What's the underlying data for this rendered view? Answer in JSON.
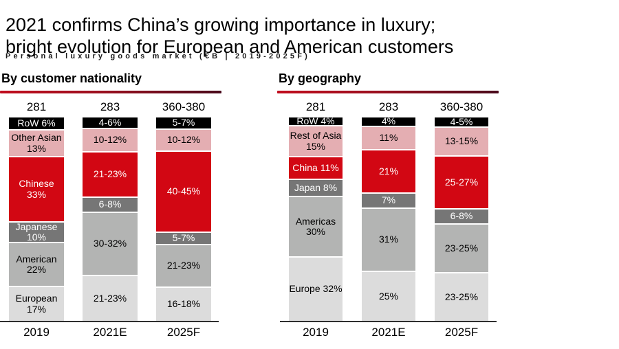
{
  "page": {
    "title_line1": "2021 confirms China’s growing importance in luxury;",
    "title_line2": "bright evolution for European and American customers",
    "subtitle": "Personal luxury goods market (€B | 2019-2025F)"
  },
  "palette": {
    "black": "#000000",
    "pink": "#e4aeb2",
    "red": "#d20713",
    "darkgray": "#767676",
    "midgray": "#b3b4b3",
    "lightgray": "#dcdcdc",
    "accent_rule_left": "#c10d1e",
    "accent_rule_right": "#4a0a1c",
    "axis": "#2e2e2e"
  },
  "chart_data": [
    {
      "type": "bar",
      "variant": "stacked-100-percent",
      "title": "By customer nationality",
      "categories": [
        "2019",
        "2021E",
        "2025F"
      ],
      "totals": [
        "281",
        "283",
        "360-380"
      ],
      "legend": "none (labels inline in segments)",
      "series_top_to_bottom": [
        "RoW",
        "Other Asian",
        "Chinese",
        "Japanese",
        "American",
        "European"
      ],
      "bars": [
        {
          "category": "2019",
          "total": "281",
          "segments": [
            {
              "name": "RoW",
              "label": "RoW 6%",
              "value": 6,
              "color": "black"
            },
            {
              "name": "Other Asian",
              "label": "Other Asian\n13%",
              "value": 13,
              "color": "pink"
            },
            {
              "name": "Chinese",
              "label": "Chinese\n33%",
              "value": 33,
              "color": "red"
            },
            {
              "name": "Japanese",
              "label": "Japanese\n10%",
              "value": 10,
              "color": "darkgray"
            },
            {
              "name": "American",
              "label": "American\n22%",
              "value": 22,
              "color": "midgray"
            },
            {
              "name": "European",
              "label": "European\n17%",
              "value": 17,
              "color": "lightgray"
            }
          ]
        },
        {
          "category": "2021E",
          "total": "283",
          "segments": [
            {
              "name": "RoW",
              "label": "4-6%",
              "value": 5,
              "color": "black"
            },
            {
              "name": "Other Asian",
              "label": "10-12%",
              "value": 11,
              "color": "pink"
            },
            {
              "name": "Chinese",
              "label": "21-23%",
              "value": 22,
              "color": "red"
            },
            {
              "name": "Japanese",
              "label": "6-8%",
              "value": 7,
              "color": "darkgray"
            },
            {
              "name": "American",
              "label": "30-32%",
              "value": 31,
              "color": "midgray"
            },
            {
              "name": "European",
              "label": "21-23%",
              "value": 22,
              "color": "lightgray"
            }
          ]
        },
        {
          "category": "2025F",
          "total": "360-380",
          "segments": [
            {
              "name": "RoW",
              "label": "5-7%",
              "value": 6,
              "color": "black"
            },
            {
              "name": "Other Asian",
              "label": "10-12%",
              "value": 11,
              "color": "pink"
            },
            {
              "name": "Chinese",
              "label": "40-45%",
              "value": 42.5,
              "color": "red"
            },
            {
              "name": "Japanese",
              "label": "5-7%",
              "value": 6,
              "color": "darkgray"
            },
            {
              "name": "American",
              "label": "21-23%",
              "value": 22,
              "color": "midgray"
            },
            {
              "name": "European",
              "label": "16-18%",
              "value": 17,
              "color": "lightgray"
            }
          ]
        }
      ]
    },
    {
      "type": "bar",
      "variant": "stacked-100-percent",
      "title": "By geography",
      "categories": [
        "2019",
        "2021E",
        "2025F"
      ],
      "totals": [
        "281",
        "283",
        "360-380"
      ],
      "legend": "none (labels inline in segments)",
      "series_top_to_bottom": [
        "RoW",
        "Rest of Asia",
        "China",
        "Japan",
        "Americas",
        "Europe"
      ],
      "bars": [
        {
          "category": "2019",
          "total": "281",
          "segments": [
            {
              "name": "RoW",
              "label": "RoW 4%",
              "value": 4,
              "color": "black"
            },
            {
              "name": "Rest of Asia",
              "label": "Rest of Asia\n15%",
              "value": 15,
              "color": "pink"
            },
            {
              "name": "China",
              "label": "China 11%",
              "value": 11,
              "color": "red"
            },
            {
              "name": "Japan",
              "label": "Japan 8%",
              "value": 8,
              "color": "darkgray"
            },
            {
              "name": "Americas",
              "label": "Americas\n30%",
              "value": 30,
              "color": "midgray"
            },
            {
              "name": "Europe",
              "label": "Europe 32%",
              "value": 32,
              "color": "lightgray"
            }
          ]
        },
        {
          "category": "2021E",
          "total": "283",
          "segments": [
            {
              "name": "RoW",
              "label": "4%",
              "value": 4,
              "color": "black"
            },
            {
              "name": "Rest of Asia",
              "label": "11%",
              "value": 11,
              "color": "pink"
            },
            {
              "name": "China",
              "label": "21%",
              "value": 21,
              "color": "red"
            },
            {
              "name": "Japan",
              "label": "7%",
              "value": 7,
              "color": "darkgray"
            },
            {
              "name": "Americas",
              "label": "31%",
              "value": 31,
              "color": "midgray"
            },
            {
              "name": "Europe",
              "label": "25%",
              "value": 25,
              "color": "lightgray"
            }
          ]
        },
        {
          "category": "2025F",
          "total": "360-380",
          "segments": [
            {
              "name": "RoW",
              "label": "4-5%",
              "value": 4.5,
              "color": "black"
            },
            {
              "name": "Rest of Asia",
              "label": "13-15%",
              "value": 14,
              "color": "pink"
            },
            {
              "name": "China",
              "label": "25-27%",
              "value": 26,
              "color": "red"
            },
            {
              "name": "Japan",
              "label": "6-8%",
              "value": 7,
              "color": "darkgray"
            },
            {
              "name": "Americas",
              "label": "23-25%",
              "value": 24,
              "color": "midgray"
            },
            {
              "name": "Europe",
              "label": "23-25%",
              "value": 24,
              "color": "lightgray"
            }
          ]
        }
      ]
    }
  ]
}
